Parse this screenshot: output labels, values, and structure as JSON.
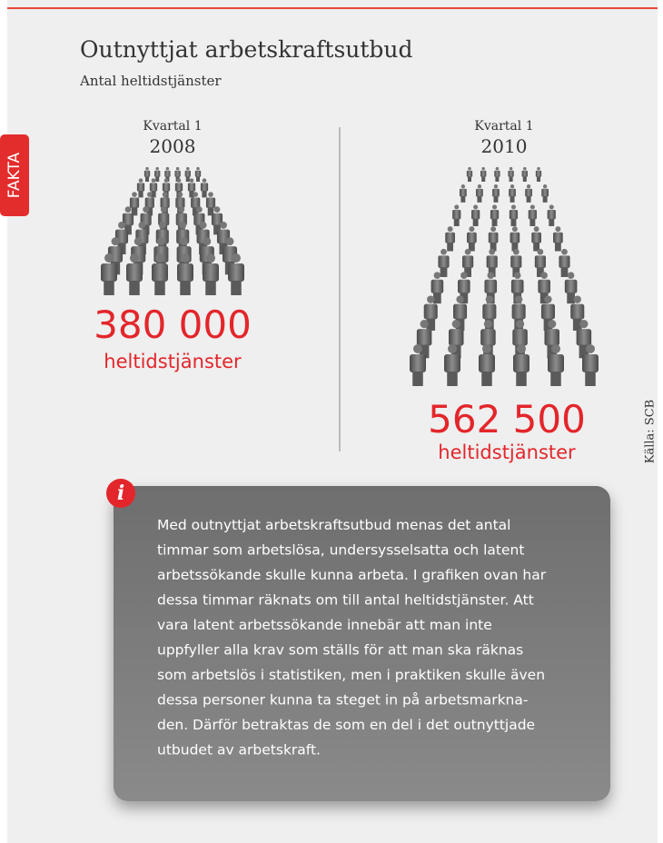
{
  "tab": "FAKTA",
  "header": {
    "title": "Outnyttjat arbetskraftsutbud",
    "subtitle": "Antal heltidstjänster"
  },
  "panels": [
    {
      "period": "Kvartal 1",
      "year": "2008",
      "value": "380 000",
      "unit": "heltidstjänster"
    },
    {
      "period": "Kvartal 1",
      "year": "2010",
      "value": "562 500",
      "unit": "heltidstjänster"
    }
  ],
  "source": "Källa: SCB",
  "info": {
    "icon": "i",
    "lines": [
      "Med outnyttjat arbetskraftsutbud menas det antal",
      "timmar som arbetslösa, undersysselsatta och latent",
      "arbetssökande skulle kunna arbeta. I grafiken ovan har",
      "dessa timmar räknats om till antal heltidstjänster. Att",
      "vara latent arbetssökande innebär att man inte",
      "uppfyller alla krav som ställs för att man ska räknas",
      "som arbetslös i statistiken, men i praktiken skulle även",
      "dessa personer kunna ta steget in på arbetsmarkna-",
      "den. Därför betraktas de som en del i det outnyttjade",
      "utbudet av arbetskraft."
    ]
  }
}
